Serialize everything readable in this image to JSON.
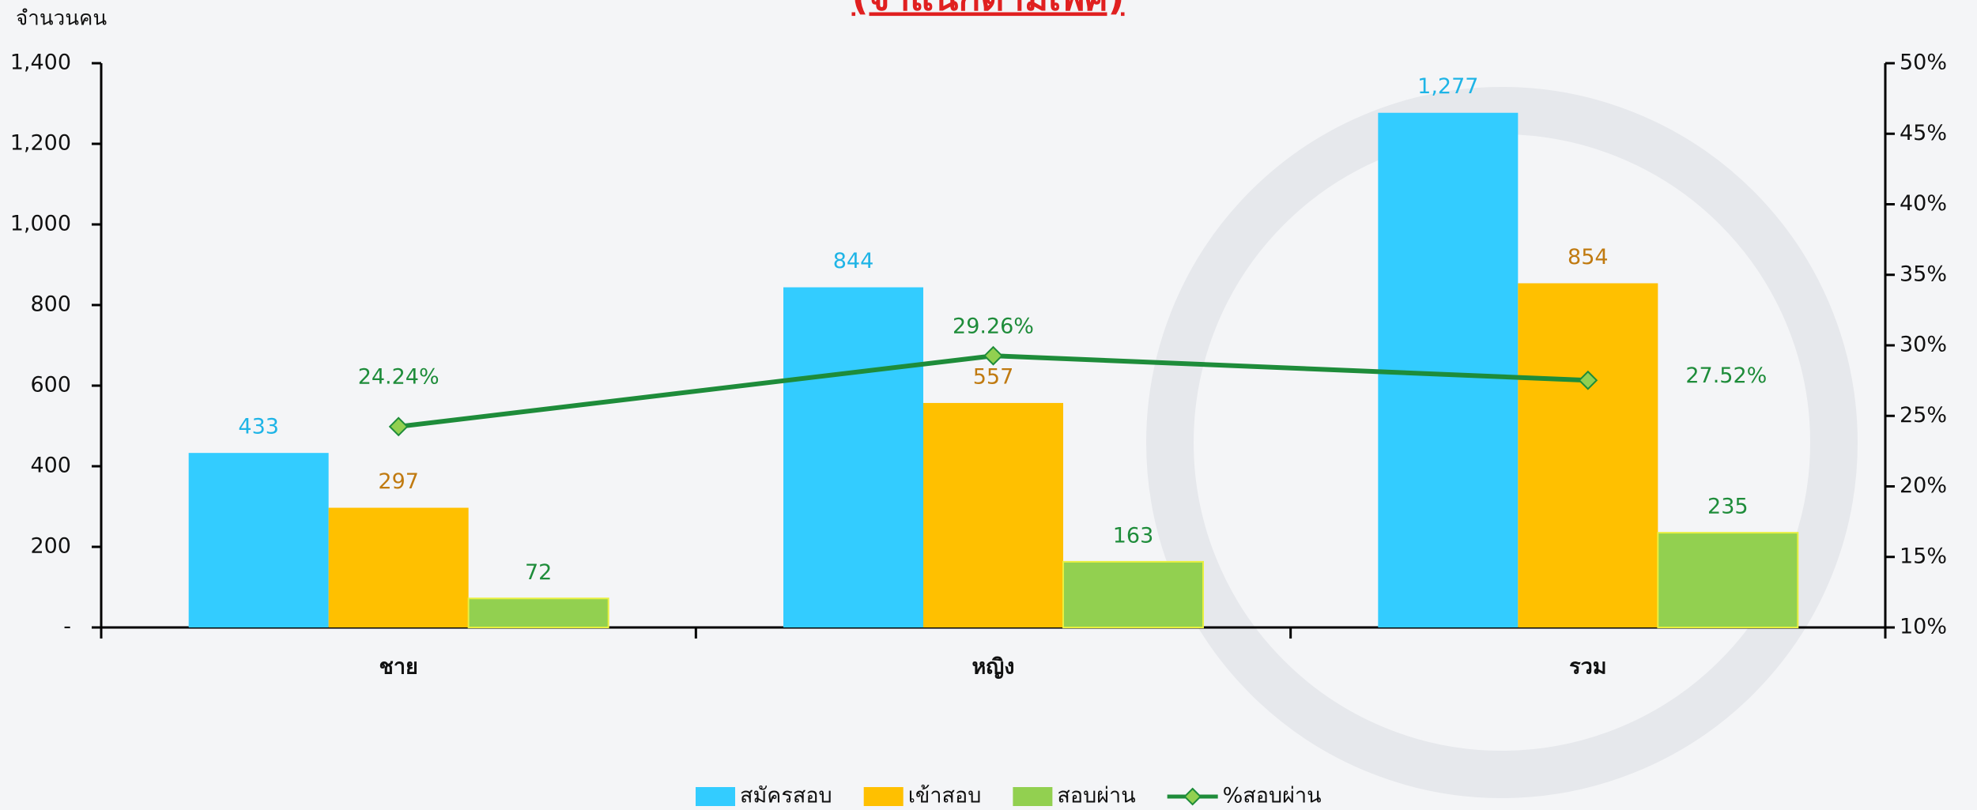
{
  "chart_data": {
    "type": "bar",
    "title": "(จำแนกตามเพศ)",
    "y_label": "จำนวนคน",
    "categories": [
      "ชาย",
      "หญิง",
      "รวม"
    ],
    "series": [
      {
        "name": "สมัครสอบ",
        "color": "#33CCFF",
        "label_color": "#1EB4E6",
        "values": [
          433,
          844,
          1277
        ],
        "value_labels": [
          "433",
          "844",
          "1,277"
        ]
      },
      {
        "name": "เข้าสอบ",
        "color": "#FFC000",
        "label_color": "#C07A10",
        "values": [
          297,
          557,
          854
        ]
      },
      {
        "name": "สอบผ่าน",
        "color": "#92D050",
        "label_color": "#1E8C3A",
        "values": [
          72,
          163,
          235
        ]
      },
      {
        "name": "%สอบผ่าน",
        "type": "line",
        "axis": "y2",
        "color": "#1E8C3A",
        "marker_color": "#92D050",
        "values": [
          24.24,
          29.26,
          27.52
        ],
        "value_labels": [
          "24.24%",
          "29.26%",
          "27.52%"
        ]
      }
    ],
    "ylim": [
      0,
      1400
    ],
    "yticks": [
      {
        "value": 0,
        "label": "-"
      },
      200,
      400,
      600,
      800,
      {
        "value": 1000,
        "label": "1,000"
      },
      {
        "value": 1200,
        "label": "1,200"
      },
      {
        "value": 1400,
        "label": "1,400"
      }
    ],
    "y2lim": [
      10,
      50
    ],
    "y2ticks": [
      {
        "value": 10,
        "label": "10%"
      },
      {
        "value": 15,
        "label": "15%"
      },
      {
        "value": 20,
        "label": "20%"
      },
      {
        "value": 25,
        "label": "25%"
      },
      {
        "value": 30,
        "label": "30%"
      },
      {
        "value": 35,
        "label": "35%"
      },
      {
        "value": 40,
        "label": "40%"
      },
      {
        "value": 45,
        "label": "45%"
      },
      {
        "value": 50,
        "label": "50%"
      }
    ],
    "grid": false,
    "legend": "bottom"
  }
}
